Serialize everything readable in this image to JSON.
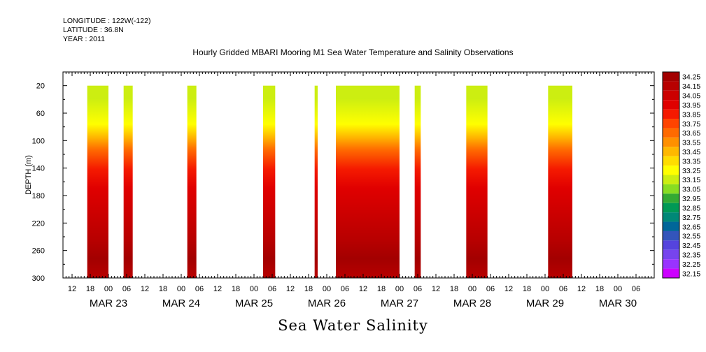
{
  "header": {
    "longitude": "LONGITUDE : 122W(-122)",
    "latitude": "LATITUDE : 36.8N",
    "year": "YEAR : 2011"
  },
  "title": "Hourly Gridded MBARI Mooring M1 Sea Water Temperature and Salinity Observations",
  "bottom_title": "Sea Water Salinity",
  "chart_data": {
    "type": "heatmap",
    "title": "Hourly Gridded MBARI Mooring M1 Sea Water Temperature and Salinity Observations",
    "xlabel": "",
    "ylabel": "DEPTH (m)",
    "x_start": "2011-03-22 09:00",
    "x_end": "2011-03-30 12:00",
    "y_range": [
      300,
      0
    ],
    "y_ticks": [
      20,
      60,
      100,
      140,
      180,
      220,
      260,
      300
    ],
    "x_hour_ticks": [
      "12",
      "18",
      "00",
      "06",
      "12",
      "18",
      "00",
      "06",
      "12",
      "18",
      "00",
      "06",
      "12",
      "18",
      "00",
      "06",
      "12",
      "18",
      "00",
      "06",
      "12",
      "18",
      "00",
      "06",
      "12",
      "18",
      "00",
      "06",
      "12",
      "18",
      "00",
      "06"
    ],
    "x_day_labels": [
      "MAR 23",
      "MAR 24",
      "MAR 25",
      "MAR 26",
      "MAR 27",
      "MAR 28",
      "MAR 29",
      "MAR 30"
    ],
    "colorbar": {
      "levels": [
        34.25,
        34.15,
        34.05,
        33.95,
        33.85,
        33.75,
        33.65,
        33.55,
        33.45,
        33.35,
        33.25,
        33.15,
        33.05,
        32.95,
        32.85,
        32.75,
        32.65,
        32.55,
        32.45,
        32.35,
        32.25,
        32.15
      ],
      "colors": [
        "#a30000",
        "#b80000",
        "#cc0000",
        "#e00000",
        "#f51a00",
        "#ff4400",
        "#ff6a00",
        "#ff9000",
        "#ffb800",
        "#ffdd00",
        "#ffff00",
        "#ccee11",
        "#88dd22",
        "#33aa33",
        "#009955",
        "#008877",
        "#006699",
        "#3355bb",
        "#5544dd",
        "#7744ee",
        "#9933ff",
        "#cc00ff"
      ]
    },
    "profile": [
      {
        "depth": 20,
        "salinity": 33.1
      },
      {
        "depth": 60,
        "salinity": 33.25
      },
      {
        "depth": 80,
        "salinity": 33.45
      },
      {
        "depth": 100,
        "salinity": 33.65
      },
      {
        "depth": 130,
        "salinity": 33.85
      },
      {
        "depth": 160,
        "salinity": 33.95
      },
      {
        "depth": 200,
        "salinity": 34.0
      },
      {
        "depth": 240,
        "salinity": 34.1
      },
      {
        "depth": 270,
        "salinity": 34.2
      },
      {
        "depth": 300,
        "salinity": 34.1
      }
    ],
    "data_segments": [
      {
        "start": "2011-03-22 17:00",
        "end": "2011-03-23 00:00"
      },
      {
        "start": "2011-03-23 05:00",
        "end": "2011-03-23 08:00"
      },
      {
        "start": "2011-03-24 02:00",
        "end": "2011-03-24 05:00"
      },
      {
        "start": "2011-03-25 03:00",
        "end": "2011-03-25 07:00"
      },
      {
        "start": "2011-03-25 20:00",
        "end": "2011-03-25 21:00"
      },
      {
        "start": "2011-03-26 03:00",
        "end": "2011-03-27 00:00"
      },
      {
        "start": "2011-03-27 05:00",
        "end": "2011-03-27 07:00"
      },
      {
        "start": "2011-03-27 22:00",
        "end": "2011-03-28 05:00"
      },
      {
        "start": "2011-03-29 01:00",
        "end": "2011-03-29 09:00"
      }
    ]
  }
}
